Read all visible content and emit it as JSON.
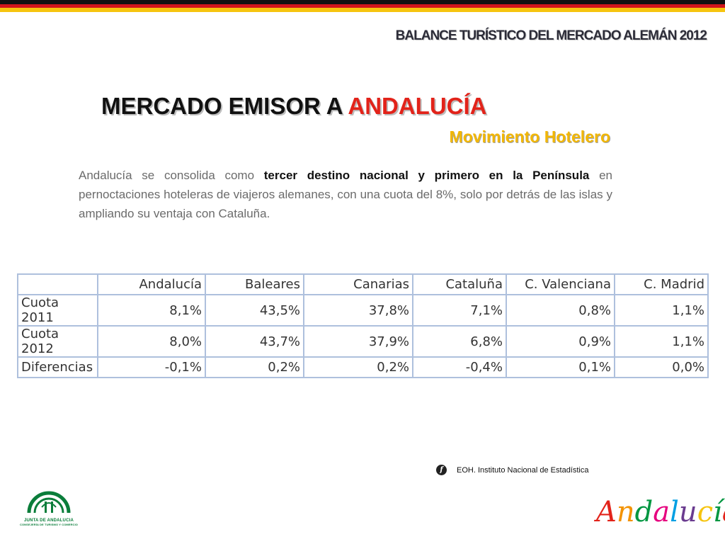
{
  "header": {
    "report_title": "BALANCE TURÍSTICO DEL MERCADO ALEMÁN 2012",
    "flag_colors": [
      "#111111",
      "#d2151c",
      "#f6c40f"
    ]
  },
  "title": {
    "prefix": "MERCADO EMISOR A",
    "accent": "ANDALUCÍA",
    "subtitle": "Movimiento Hotelero",
    "accent_color": "#e2231a",
    "subtitle_color": "#f2b705"
  },
  "paragraph": {
    "part1": "Andalucía se consolida como",
    "bold": "tercer destino nacional y primero en la Península",
    "part2": "en pernoctaciones hoteleras de viajeros alemanes, con una cuota del 8%, solo por detrás de las islas y ampliando su ventaja con Cataluña."
  },
  "table": {
    "headers": [
      "",
      "Andalucía",
      "Baleares",
      "Canarias",
      "Cataluña",
      "C. Valenciana",
      "C. Madrid"
    ],
    "rows": [
      [
        "Cuota 2011",
        "8,1%",
        "43,5%",
        "37,8%",
        "7,1%",
        "0,8%",
        "1,1%"
      ],
      [
        "Cuota 2012",
        "8,0%",
        "43,7%",
        "37,9%",
        "6,8%",
        "0,9%",
        "1,1%"
      ],
      [
        "Diferencias",
        "-0,1%",
        "0,2%",
        "0,2%",
        "-0,4%",
        "0,1%",
        "0,0%"
      ]
    ],
    "border_color": "#aec0dd"
  },
  "source": {
    "icon": "f-source-icon",
    "icon_glyph": "f",
    "text": "EOH. Instituto Nacional de Estadística"
  },
  "logos": {
    "junta_line1": "JUNTA DE ANDALUCIA",
    "junta_line2": "CONSEJERÍA DE TURISMO Y COMERCIO",
    "brand_text": "Andalucía",
    "brand_colors": [
      "#e2231a",
      "#f39200",
      "#009640",
      "#e6007e",
      "#009fe3",
      "#6a3b8f",
      "#f6c40f",
      "#009640",
      "#e2231a"
    ]
  }
}
